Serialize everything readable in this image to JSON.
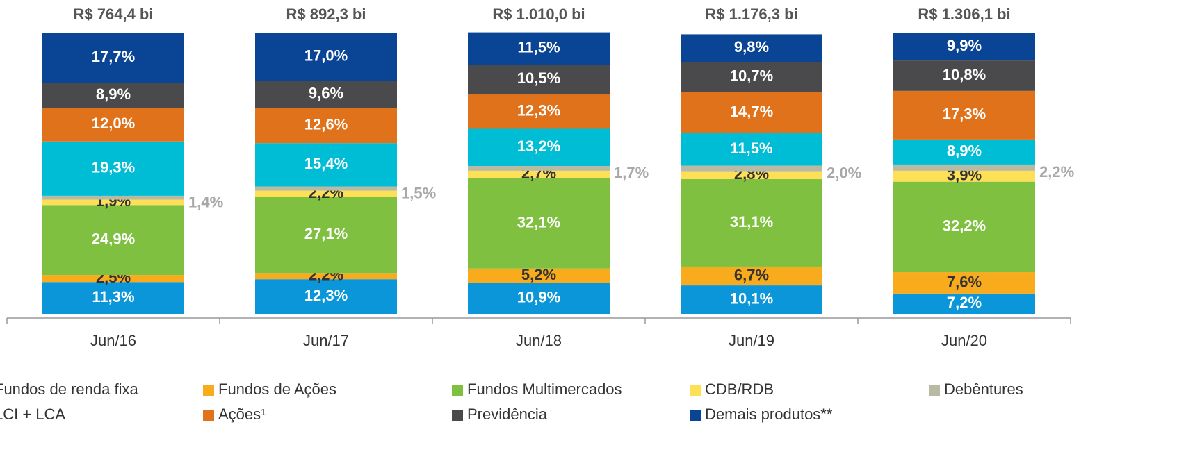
{
  "chart_data": {
    "type": "stacked_bar",
    "categories": [
      "Jun/16",
      "Jun/17",
      "Jun/18",
      "Jun/19",
      "Jun/20"
    ],
    "total_labels": [
      "R$ 764,4 bi",
      "R$ 892,3 bi",
      "R$ 1.010,0 bi",
      "R$ 1.176,3 bi",
      "R$ 1.306,1 bi"
    ],
    "ylim": [
      0,
      100
    ],
    "series": [
      {
        "name": "Fundos de renda fixa",
        "color": "#0a96d8",
        "values": [
          11.3,
          12.3,
          10.9,
          10.1,
          7.2
        ],
        "value_labels": [
          "11,3%",
          "12,3%",
          "10,9%",
          "10,1%",
          "7,2%"
        ]
      },
      {
        "name": "Fundos de Ações",
        "color": "#f8ab1c",
        "values": [
          2.5,
          2.2,
          5.2,
          6.7,
          7.6
        ],
        "value_labels": [
          "2,5%",
          "2,2%",
          "5,2%",
          "6,7%",
          "7,6%"
        ]
      },
      {
        "name": "Fundos Multimercados",
        "color": "#80c041",
        "values": [
          24.9,
          27.1,
          32.1,
          31.1,
          32.2
        ],
        "value_labels": [
          "24,9%",
          "27,1%",
          "32,1%",
          "31,1%",
          "32,2%"
        ]
      },
      {
        "name": "CDB/RDB",
        "color": "#fde055",
        "values": [
          1.9,
          2.2,
          2.7,
          2.8,
          3.9
        ],
        "value_labels": [
          "1,9%",
          "2,2%",
          "2,7%",
          "2,8%",
          "3,9%"
        ]
      },
      {
        "name": "Debêntures",
        "color": "#b9baa3",
        "values": [
          1.4,
          1.5,
          1.7,
          2.0,
          2.2
        ],
        "value_labels": [
          "1,4%",
          "1,5%",
          "1,7%",
          "2,0%",
          "2,2%"
        ]
      },
      {
        "name": "LCI + LCA",
        "color": "#00bdd6",
        "values": [
          19.3,
          15.4,
          13.2,
          11.5,
          8.9
        ],
        "value_labels": [
          "19,3%",
          "15,4%",
          "13,2%",
          "11,5%",
          "8,9%"
        ]
      },
      {
        "name": "Ações¹",
        "color": "#e0721c",
        "values": [
          12.0,
          12.6,
          12.3,
          14.7,
          17.3
        ],
        "value_labels": [
          "12,0%",
          "12,6%",
          "12,3%",
          "14,7%",
          "17,3%"
        ]
      },
      {
        "name": "Previdência",
        "color": "#4a4a4c",
        "values": [
          8.9,
          9.6,
          10.5,
          10.7,
          10.8
        ],
        "value_labels": [
          "8,9%",
          "9,6%",
          "10,5%",
          "10,7%",
          "10,8%"
        ]
      },
      {
        "name": "Demais produtos**",
        "color": "#0a4595",
        "values": [
          17.7,
          17.0,
          11.5,
          9.8,
          9.9
        ],
        "value_labels": [
          "17,7%",
          "17,0%",
          "11,5%",
          "9,8%",
          "9,9%"
        ]
      }
    ]
  }
}
